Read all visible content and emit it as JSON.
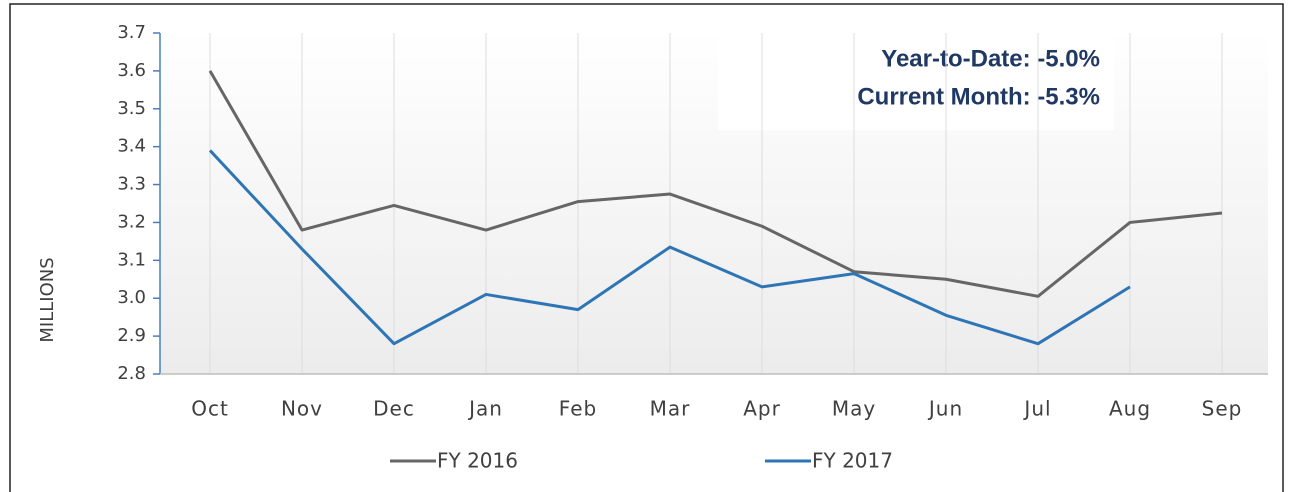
{
  "chart_data": {
    "type": "line",
    "y_label": "MILLIONS",
    "annotations": [
      "Year-to-Date:  -5.0%",
      "Current Month:  -5.3%"
    ],
    "categories": [
      "Oct",
      "Nov",
      "Dec",
      "Jan",
      "Feb",
      "Mar",
      "Apr",
      "May",
      "Jun",
      "Jul",
      "Aug",
      "Sep"
    ],
    "series": [
      {
        "name": "FY 2016",
        "color": "#666666",
        "values": [
          3.6,
          3.18,
          3.245,
          3.18,
          3.255,
          3.275,
          3.19,
          3.07,
          3.05,
          3.005,
          3.2,
          3.225
        ]
      },
      {
        "name": "FY 2017",
        "color": "#2e75b6",
        "values": [
          3.39,
          3.13,
          2.88,
          3.01,
          2.97,
          3.135,
          3.03,
          3.065,
          2.955,
          2.88,
          3.03,
          null
        ]
      }
    ],
    "ylim": [
      2.8,
      3.7
    ],
    "yticks": [
      2.8,
      2.9,
      {
        "value": 3.0,
        "label": "3.0"
      },
      3.1,
      3.2,
      3.3,
      3.4,
      3.5,
      3.6,
      3.7
    ],
    "grid": true,
    "legend": "bottom"
  }
}
